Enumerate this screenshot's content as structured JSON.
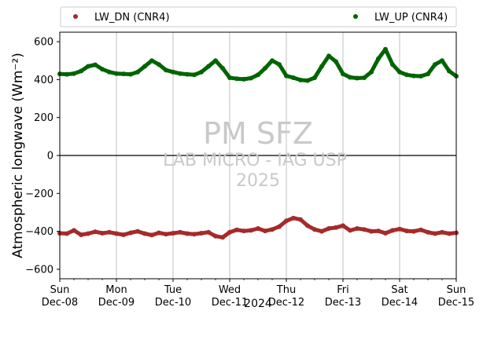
{
  "chart_data": {
    "type": "scatter",
    "xlabel": "2024",
    "ylabel": "Atmospheric longwave",
    "ylabel_units": "(Wm⁻²)",
    "x_range": [
      "2024-12-08",
      "2024-12-15"
    ],
    "ylim": [
      -650,
      650
    ],
    "y_ticks": [
      600,
      400,
      200,
      0,
      -200,
      -400,
      -600
    ],
    "x_ticks": [
      {
        "date": "2024-12-08",
        "day": "Sun",
        "label": "Dec-08"
      },
      {
        "date": "2024-12-09",
        "day": "Mon",
        "label": "Dec-09"
      },
      {
        "date": "2024-12-10",
        "day": "Tue",
        "label": "Dec-10"
      },
      {
        "date": "2024-12-11",
        "day": "Wed",
        "label": "Dec-11"
      },
      {
        "date": "2024-12-12",
        "day": "Thu",
        "label": "Dec-12"
      },
      {
        "date": "2024-12-13",
        "day": "Fri",
        "label": "Dec-13"
      },
      {
        "date": "2024-12-14",
        "day": "Sat",
        "label": "Dec-14"
      },
      {
        "date": "2024-12-15",
        "day": "Sun",
        "label": "Dec-15"
      }
    ],
    "grid": "vertical at day ticks",
    "zero_line": true,
    "legend_position": "top, above plot",
    "series": [
      {
        "name": "LW_DN (CNR4)",
        "color": "#a52a2a",
        "points": [
          [
            "2024-12-08 00:00",
            -410
          ],
          [
            "2024-12-08 03:00",
            -412
          ],
          [
            "2024-12-08 06:00",
            -395
          ],
          [
            "2024-12-08 09:00",
            -418
          ],
          [
            "2024-12-08 12:00",
            -412
          ],
          [
            "2024-12-08 15:00",
            -402
          ],
          [
            "2024-12-08 18:00",
            -410
          ],
          [
            "2024-12-08 21:00",
            -405
          ],
          [
            "2024-12-09 00:00",
            -412
          ],
          [
            "2024-12-09 03:00",
            -418
          ],
          [
            "2024-12-09 06:00",
            -408
          ],
          [
            "2024-12-09 09:00",
            -400
          ],
          [
            "2024-12-09 12:00",
            -412
          ],
          [
            "2024-12-09 15:00",
            -420
          ],
          [
            "2024-12-09 18:00",
            -408
          ],
          [
            "2024-12-09 21:00",
            -415
          ],
          [
            "2024-12-10 00:00",
            -410
          ],
          [
            "2024-12-10 03:00",
            -405
          ],
          [
            "2024-12-10 06:00",
            -412
          ],
          [
            "2024-12-10 09:00",
            -415
          ],
          [
            "2024-12-10 12:00",
            -410
          ],
          [
            "2024-12-10 15:00",
            -405
          ],
          [
            "2024-12-10 18:00",
            -425
          ],
          [
            "2024-12-10 21:00",
            -432
          ],
          [
            "2024-12-11 00:00",
            -405
          ],
          [
            "2024-12-11 03:00",
            -392
          ],
          [
            "2024-12-11 06:00",
            -398
          ],
          [
            "2024-12-11 09:00",
            -395
          ],
          [
            "2024-12-11 12:00",
            -385
          ],
          [
            "2024-12-11 15:00",
            -398
          ],
          [
            "2024-12-11 18:00",
            -390
          ],
          [
            "2024-12-11 21:00",
            -375
          ],
          [
            "2024-12-12 00:00",
            -345
          ],
          [
            "2024-12-12 03:00",
            -330
          ],
          [
            "2024-12-12 06:00",
            -338
          ],
          [
            "2024-12-12 09:00",
            -370
          ],
          [
            "2024-12-12 12:00",
            -390
          ],
          [
            "2024-12-12 15:00",
            -400
          ],
          [
            "2024-12-12 18:00",
            -385
          ],
          [
            "2024-12-12 21:00",
            -380
          ],
          [
            "2024-12-13 00:00",
            -370
          ],
          [
            "2024-12-13 03:00",
            -395
          ],
          [
            "2024-12-13 06:00",
            -385
          ],
          [
            "2024-12-13 09:00",
            -390
          ],
          [
            "2024-12-13 12:00",
            -400
          ],
          [
            "2024-12-13 15:00",
            -398
          ],
          [
            "2024-12-13 18:00",
            -410
          ],
          [
            "2024-12-13 21:00",
            -395
          ],
          [
            "2024-12-14 00:00",
            -388
          ],
          [
            "2024-12-14 03:00",
            -398
          ],
          [
            "2024-12-14 06:00",
            -400
          ],
          [
            "2024-12-14 09:00",
            -392
          ],
          [
            "2024-12-14 12:00",
            -405
          ],
          [
            "2024-12-14 15:00",
            -412
          ],
          [
            "2024-12-14 18:00",
            -405
          ],
          [
            "2024-12-14 21:00",
            -412
          ],
          [
            "2024-12-15 00:00",
            -408
          ]
        ]
      },
      {
        "name": "LW_UP (CNR4)",
        "color": "#006400",
        "points": [
          [
            "2024-12-08 00:00",
            430
          ],
          [
            "2024-12-08 03:00",
            428
          ],
          [
            "2024-12-08 06:00",
            432
          ],
          [
            "2024-12-08 09:00",
            445
          ],
          [
            "2024-12-08 12:00",
            470
          ],
          [
            "2024-12-08 15:00",
            478
          ],
          [
            "2024-12-08 18:00",
            455
          ],
          [
            "2024-12-08 21:00",
            440
          ],
          [
            "2024-12-09 00:00",
            432
          ],
          [
            "2024-12-09 03:00",
            430
          ],
          [
            "2024-12-09 06:00",
            428
          ],
          [
            "2024-12-09 09:00",
            440
          ],
          [
            "2024-12-09 12:00",
            470
          ],
          [
            "2024-12-09 15:00",
            500
          ],
          [
            "2024-12-09 18:00",
            480
          ],
          [
            "2024-12-09 21:00",
            450
          ],
          [
            "2024-12-10 00:00",
            440
          ],
          [
            "2024-12-10 03:00",
            432
          ],
          [
            "2024-12-10 06:00",
            428
          ],
          [
            "2024-12-10 09:00",
            425
          ],
          [
            "2024-12-10 12:00",
            440
          ],
          [
            "2024-12-10 15:00",
            470
          ],
          [
            "2024-12-10 18:00",
            500
          ],
          [
            "2024-12-10 21:00",
            460
          ],
          [
            "2024-12-11 00:00",
            410
          ],
          [
            "2024-12-11 03:00",
            405
          ],
          [
            "2024-12-11 06:00",
            402
          ],
          [
            "2024-12-11 09:00",
            408
          ],
          [
            "2024-12-11 12:00",
            425
          ],
          [
            "2024-12-11 15:00",
            460
          ],
          [
            "2024-12-11 18:00",
            500
          ],
          [
            "2024-12-11 21:00",
            480
          ],
          [
            "2024-12-12 00:00",
            420
          ],
          [
            "2024-12-12 03:00",
            410
          ],
          [
            "2024-12-12 06:00",
            398
          ],
          [
            "2024-12-12 09:00",
            395
          ],
          [
            "2024-12-12 12:00",
            410
          ],
          [
            "2024-12-12 15:00",
            470
          ],
          [
            "2024-12-12 18:00",
            525
          ],
          [
            "2024-12-12 21:00",
            495
          ],
          [
            "2024-12-13 00:00",
            430
          ],
          [
            "2024-12-13 03:00",
            412
          ],
          [
            "2024-12-13 06:00",
            408
          ],
          [
            "2024-12-13 09:00",
            410
          ],
          [
            "2024-12-13 12:00",
            440
          ],
          [
            "2024-12-13 15:00",
            510
          ],
          [
            "2024-12-13 18:00",
            560
          ],
          [
            "2024-12-13 21:00",
            480
          ],
          [
            "2024-12-14 00:00",
            440
          ],
          [
            "2024-12-14 03:00",
            425
          ],
          [
            "2024-12-14 06:00",
            420
          ],
          [
            "2024-12-14 09:00",
            418
          ],
          [
            "2024-12-14 12:00",
            430
          ],
          [
            "2024-12-14 15:00",
            480
          ],
          [
            "2024-12-14 18:00",
            500
          ],
          [
            "2024-12-14 21:00",
            445
          ],
          [
            "2024-12-15 00:00",
            418
          ]
        ]
      }
    ]
  },
  "watermark": {
    "line1": "PM SFZ",
    "line2": "LAB MICRO - IAG USP",
    "line3": "2025"
  }
}
